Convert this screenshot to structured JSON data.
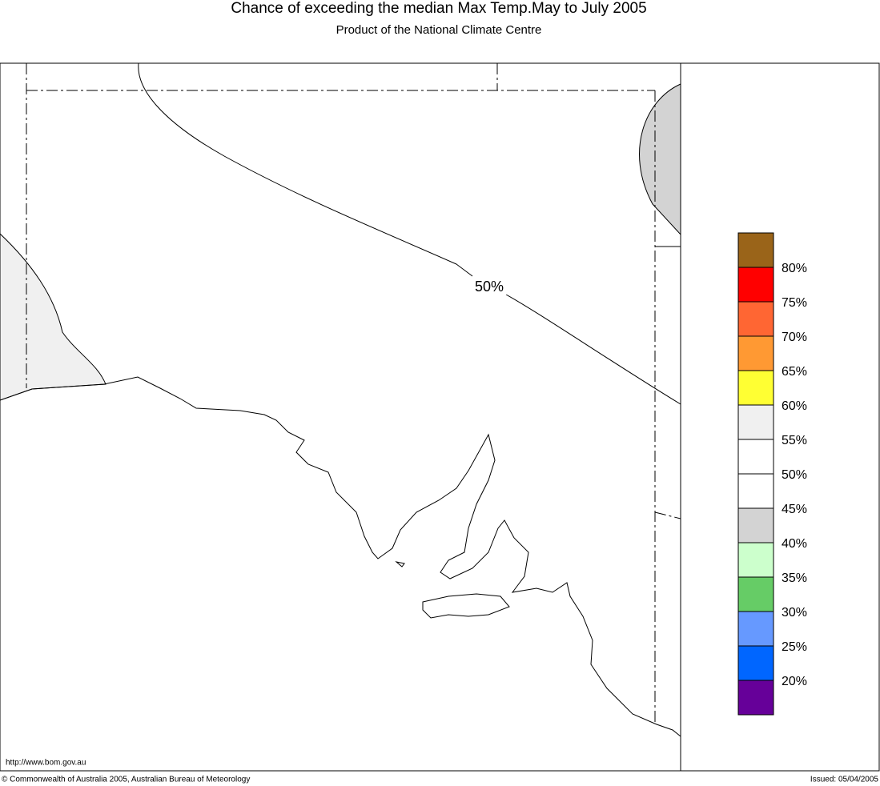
{
  "header": {
    "title": "Chance of exceeding the median Max Temp.May to July 2005",
    "subtitle": "Product of the National Climate Centre"
  },
  "map": {
    "contour_label": "50%",
    "url": "http://www.bom.gov.au"
  },
  "legend": {
    "colors": [
      "#9a6419",
      "#ff0000",
      "#ff6633",
      "#ff9933",
      "#ffff33",
      "#f0f0f0",
      "#ffffff",
      "#ffffff",
      "#d3d3d3",
      "#ccffcc",
      "#66cc66",
      "#6699ff",
      "#0066ff",
      "#660099"
    ],
    "labels": [
      "80%",
      "75%",
      "70%",
      "65%",
      "60%",
      "55%",
      "50%",
      "45%",
      "40%",
      "35%",
      "30%",
      "25%",
      "20%"
    ]
  },
  "footer": {
    "copyright": "© Commonwealth of Australia 2005, Australian Bureau of Meteorology",
    "issued": "Issued: 05/04/2005"
  }
}
